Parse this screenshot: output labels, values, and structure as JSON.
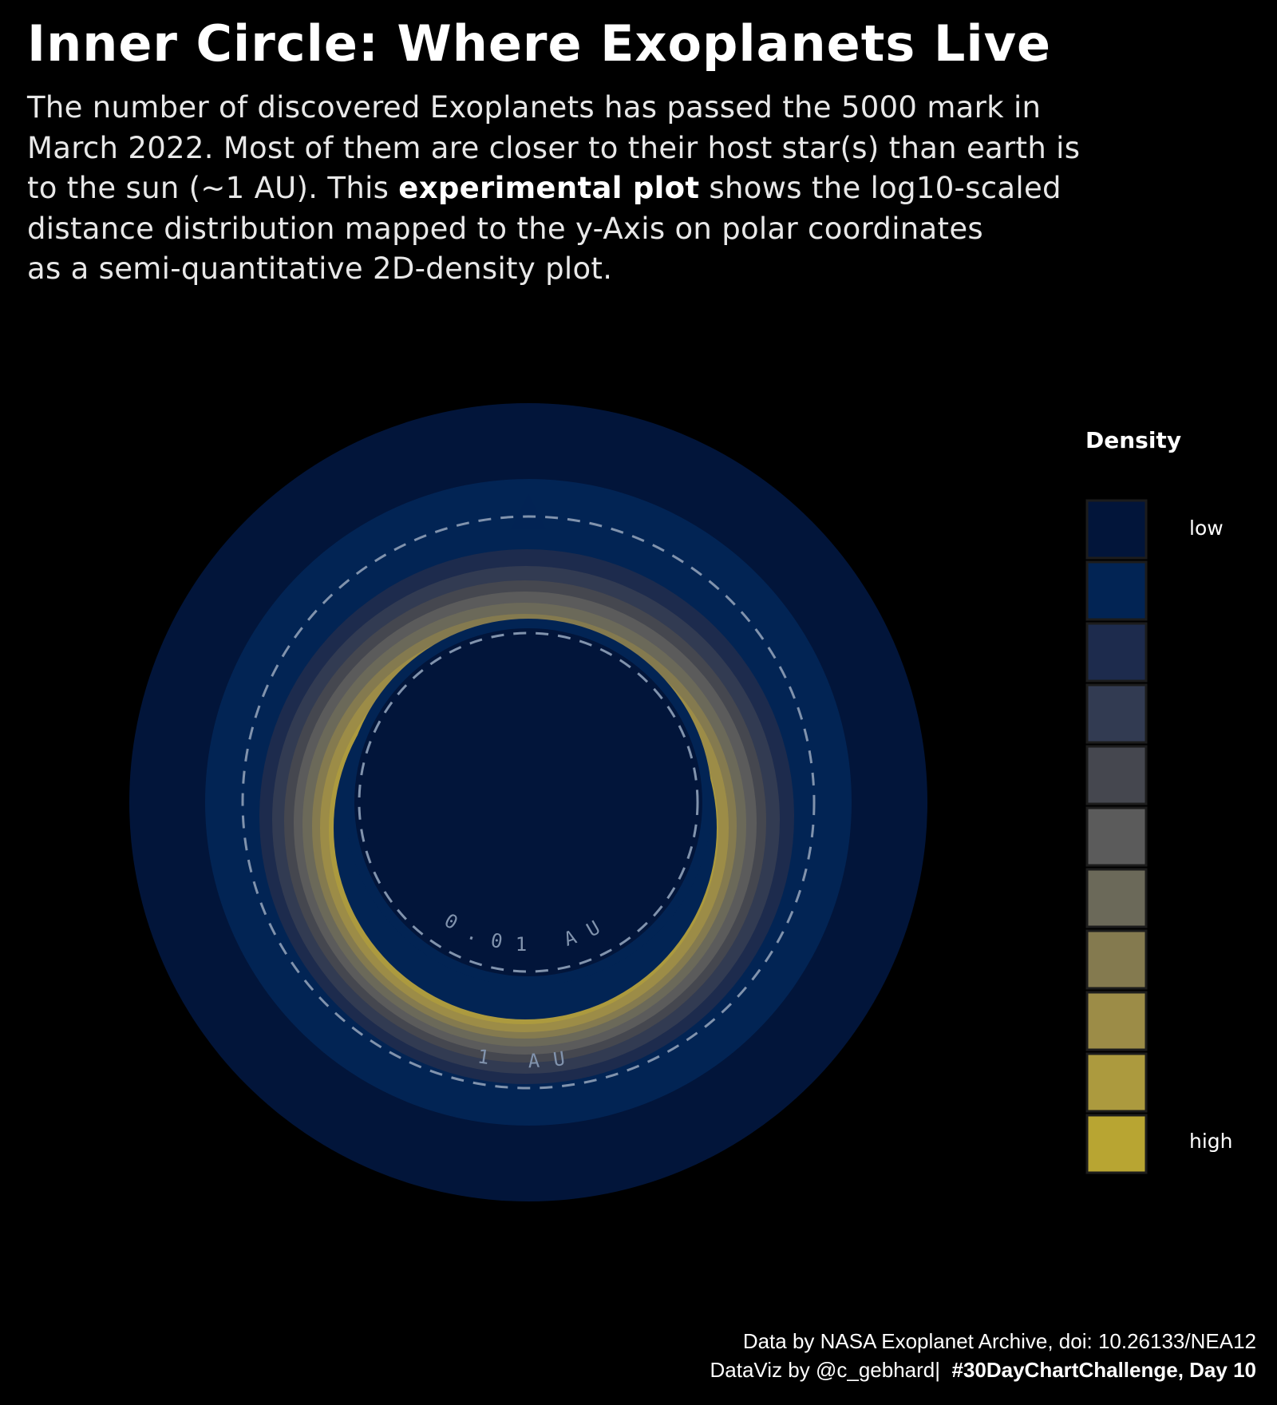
{
  "title": "Inner Circle: Where Exoplanets Live",
  "subtitle": {
    "line1": "The number of discovered Exoplanets has passed the 5000 mark in",
    "line2": "March 2022. Most of them are closer to their host star(s) than earth is",
    "line3_pre": "to the sun (~1 AU). This",
    "line3_bold": "experimental plot",
    "line3_post": "shows the log10-scaled",
    "line4": "distance distribution mapped to the y-Axis on polar coordinates",
    "line5": "as a semi-quantitative 2D-density plot."
  },
  "chart_data": {
    "type": "density",
    "coordinates": "polar",
    "radial_axis": "log10(orbital distance, AU)",
    "reference_circles": [
      {
        "value_au": 0.01,
        "label": "0.01 AU",
        "style": "dashed"
      },
      {
        "value_au": 1,
        "label": "1 AU",
        "style": "dashed"
      }
    ],
    "density_peak_au_approx": 0.1,
    "legend": {
      "title": "Density",
      "low_label": "low",
      "high_label": "high",
      "levels": [
        "#02153a",
        "#022454",
        "#1d2b4d",
        "#323b52",
        "#45474f",
        "#5b5b5b",
        "#6b6959",
        "#847a4f",
        "#9c8c47",
        "#ac9a3e",
        "#b8a532"
      ]
    }
  },
  "caption": {
    "line1": "Data by NASA Exoplanet Archive, doi: 10.26133/NEA12",
    "line2_pre": "DataViz by @c_gebhard|",
    "line2_bold": "#30DayChartChallenge, Day 10"
  },
  "colors": {
    "background": "#000000",
    "outer_band": "#011a3a",
    "guide_dash": "#8193ad"
  }
}
